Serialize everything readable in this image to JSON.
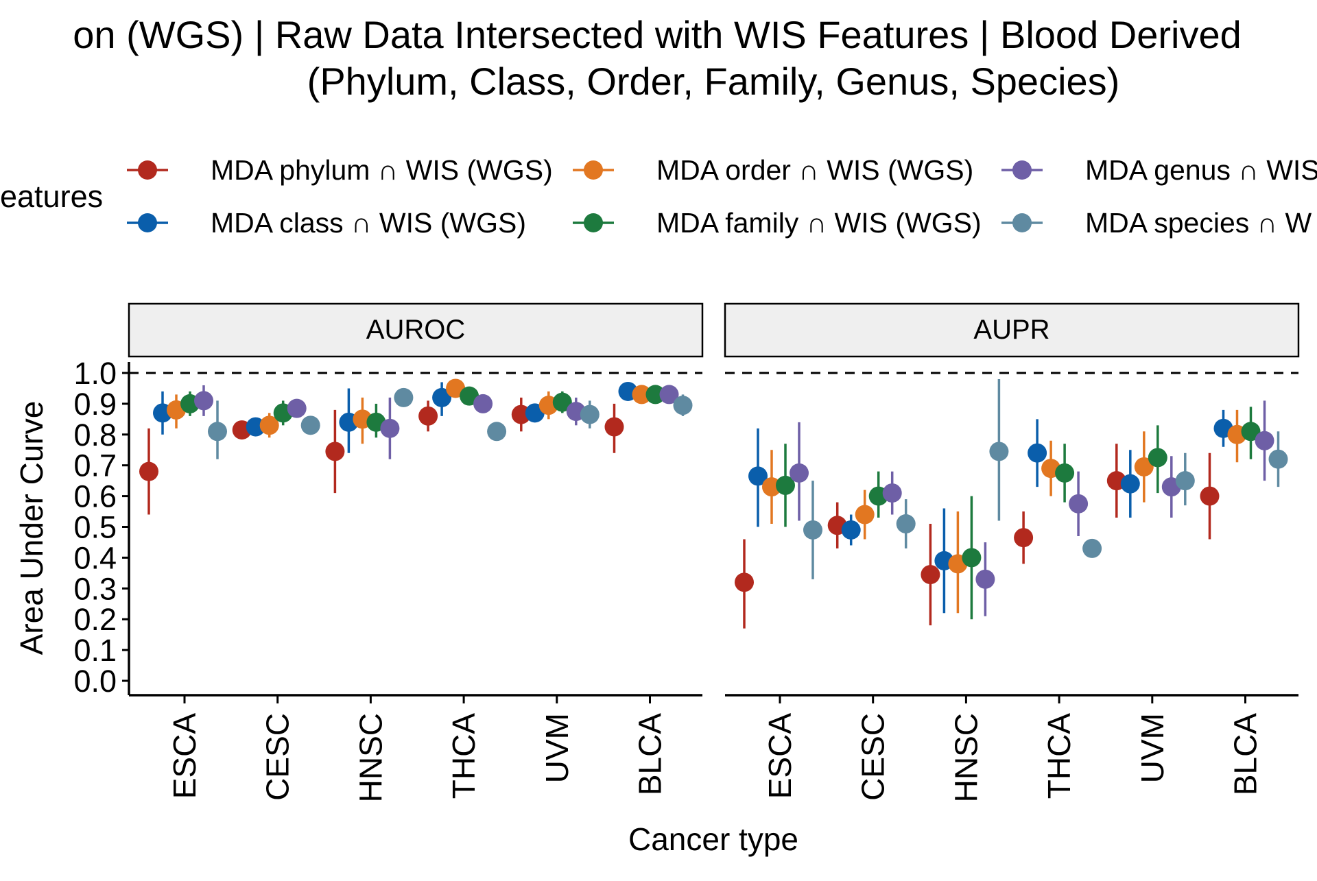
{
  "chart_data": {
    "type": "scatter",
    "title_line1": "on (WGS) | Raw Data Intersected with WIS Features  | Blood Derived",
    "title_line2": "(Phylum, Class, Order, Family, Genus, Species)",
    "legend_title": "eatures",
    "legend_placement": "top",
    "xlabel": "Cancer type",
    "ylabel": "Area Under Curve",
    "ylim": [
      0,
      1
    ],
    "yticks": [
      "0.0",
      "0.1",
      "0.2",
      "0.3",
      "0.4",
      "0.5",
      "0.6",
      "0.7",
      "0.8",
      "0.9",
      "1.0"
    ],
    "reference_line": 1.0,
    "categories": [
      "ESCA",
      "CESC",
      "HNSC",
      "THCA",
      "UVM",
      "BLCA"
    ],
    "series": [
      {
        "label": "MDA phylum ∩ WIS (WGS)",
        "color": "#B2291E"
      },
      {
        "label": "MDA class ∩ WIS (WGS)",
        "color": "#0A5EAB"
      },
      {
        "label": "MDA order ∩ WIS (WGS)",
        "color": "#E27721"
      },
      {
        "label": "MDA family ∩ WIS (WGS)",
        "color": "#1D7A3E"
      },
      {
        "label": "MDA genus ∩ WIS",
        "color": "#6E5FA6"
      },
      {
        "label": "MDA species ∩ W",
        "color": "#5F8AA1"
      }
    ],
    "panels": [
      {
        "label": "AUROC",
        "values": [
          [
            [
              0.68,
              0.54,
              0.82
            ],
            [
              0.87,
              0.8,
              0.94
            ],
            [
              0.88,
              0.82,
              0.93
            ],
            [
              0.9,
              0.86,
              0.94
            ],
            [
              0.91,
              0.86,
              0.96
            ],
            [
              0.81,
              0.72,
              0.91
            ]
          ],
          [
            [
              0.815,
              0.8,
              0.83
            ],
            [
              0.825,
              0.8,
              0.85
            ],
            [
              0.83,
              0.79,
              0.87
            ],
            [
              0.87,
              0.83,
              0.91
            ],
            [
              0.885,
              0.86,
              0.91
            ],
            [
              0.83,
              0.82,
              0.85
            ]
          ],
          [
            [
              0.745,
              0.61,
              0.88
            ],
            [
              0.84,
              0.74,
              0.95
            ],
            [
              0.85,
              0.77,
              0.92
            ],
            [
              0.84,
              0.79,
              0.9
            ],
            [
              0.82,
              0.72,
              0.92
            ],
            [
              0.92,
              0.9,
              0.94
            ]
          ],
          [
            [
              0.86,
              0.81,
              0.91
            ],
            [
              0.92,
              0.86,
              0.97
            ],
            [
              0.95,
              0.93,
              0.97
            ],
            [
              0.925,
              0.9,
              0.95
            ],
            [
              0.9,
              0.87,
              0.93
            ],
            [
              0.81,
              0.8,
              0.83
            ]
          ],
          [
            [
              0.865,
              0.81,
              0.92
            ],
            [
              0.87,
              0.84,
              0.9
            ],
            [
              0.895,
              0.85,
              0.94
            ],
            [
              0.905,
              0.87,
              0.94
            ],
            [
              0.875,
              0.83,
              0.92
            ],
            [
              0.865,
              0.82,
              0.91
            ]
          ],
          [
            [
              0.825,
              0.74,
              0.9
            ],
            [
              0.94,
              0.92,
              0.96
            ],
            [
              0.93,
              0.91,
              0.95
            ],
            [
              0.93,
              0.91,
              0.95
            ],
            [
              0.93,
              0.91,
              0.95
            ],
            [
              0.895,
              0.86,
              0.93
            ]
          ]
        ]
      },
      {
        "label": "AUPR",
        "values": [
          [
            [
              0.32,
              0.17,
              0.46
            ],
            [
              0.665,
              0.5,
              0.82
            ],
            [
              0.63,
              0.51,
              0.75
            ],
            [
              0.635,
              0.5,
              0.77
            ],
            [
              0.675,
              0.52,
              0.84
            ],
            [
              0.49,
              0.33,
              0.65
            ]
          ],
          [
            [
              0.505,
              0.43,
              0.58
            ],
            [
              0.49,
              0.44,
              0.54
            ],
            [
              0.54,
              0.46,
              0.62
            ],
            [
              0.6,
              0.53,
              0.68
            ],
            [
              0.61,
              0.54,
              0.68
            ],
            [
              0.51,
              0.43,
              0.59
            ]
          ],
          [
            [
              0.345,
              0.18,
              0.51
            ],
            [
              0.39,
              0.22,
              0.56
            ],
            [
              0.38,
              0.22,
              0.55
            ],
            [
              0.4,
              0.2,
              0.6
            ],
            [
              0.33,
              0.21,
              0.45
            ],
            [
              0.745,
              0.52,
              0.98
            ]
          ],
          [
            [
              0.465,
              0.38,
              0.55
            ],
            [
              0.74,
              0.63,
              0.85
            ],
            [
              0.69,
              0.6,
              0.78
            ],
            [
              0.675,
              0.58,
              0.77
            ],
            [
              0.575,
              0.47,
              0.68
            ],
            [
              0.43,
              0.41,
              0.45
            ]
          ],
          [
            [
              0.65,
              0.53,
              0.77
            ],
            [
              0.64,
              0.53,
              0.75
            ],
            [
              0.695,
              0.58,
              0.81
            ],
            [
              0.725,
              0.61,
              0.83
            ],
            [
              0.63,
              0.53,
              0.73
            ],
            [
              0.65,
              0.57,
              0.74
            ]
          ],
          [
            [
              0.6,
              0.46,
              0.74
            ],
            [
              0.82,
              0.76,
              0.88
            ],
            [
              0.8,
              0.71,
              0.88
            ],
            [
              0.81,
              0.72,
              0.89
            ],
            [
              0.78,
              0.65,
              0.91
            ],
            [
              0.72,
              0.63,
              0.81
            ]
          ]
        ]
      }
    ]
  }
}
